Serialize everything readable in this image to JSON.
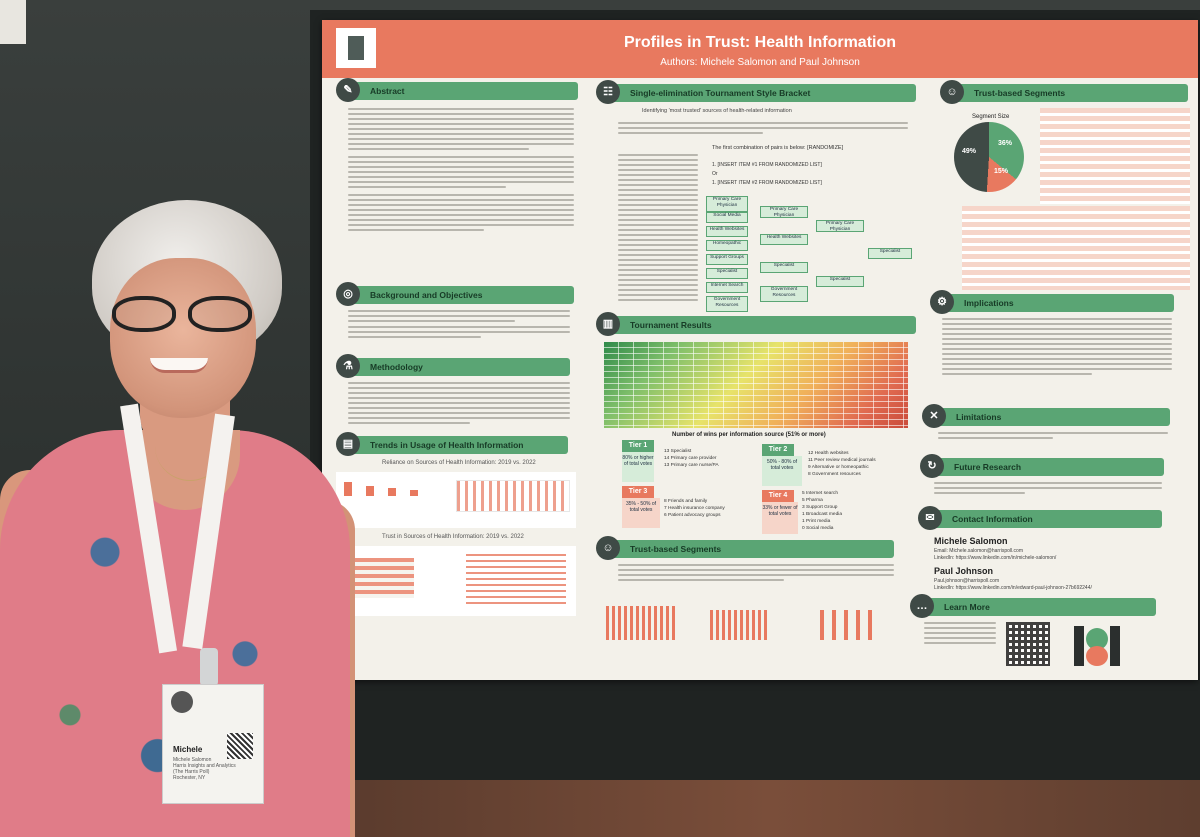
{
  "poster": {
    "title": "Profiles in Trust: Health Information",
    "authors": "Authors: Michele Salomon and Paul Johnson",
    "sections": {
      "abstract": "Abstract",
      "background": "Background and Objectives",
      "methodology": "Methodology",
      "trends": "Trends in Usage of Health Information",
      "bracket": "Single-elimination Tournament Style Bracket",
      "results": "Tournament Results",
      "segments_bottom": "Trust-based Segments",
      "segments_top": "Trust-based Segments",
      "implications": "Implications",
      "limitations": "Limitations",
      "future": "Future Research",
      "contact": "Contact Information",
      "learn": "Learn More"
    },
    "trends_chart1": "Reliance on Sources of Health Information: 2019 vs. 2022",
    "trends_chart2": "Trust in Sources of Health Information: 2019 vs. 2022",
    "bracket_subtitle": "Identifying 'most trusted' sources of health-related information",
    "bracket_combination": "The first combination of pairs is below: [RANDOMIZE]",
    "bracket_item1": "1.   [INSERT ITEM #1 FROM RANDOMIZED LIST]",
    "bracket_or": "Or",
    "bracket_item2": "1.   [INSERT ITEM #2 FROM RANDOMIZED LIST]",
    "segment_size": "Segment Size",
    "segment_pcts": [
      "49%",
      "36%",
      "15%"
    ],
    "results_caption": "Number of wins per information source (51% or more)",
    "tiers": [
      {
        "label": "Tier 1",
        "box": "80% or higher of total votes",
        "items": [
          "13 Specialist",
          "14 Primary care provider",
          "13 Primary care nurse/PA"
        ]
      },
      {
        "label": "Tier 2",
        "box": "50% - 80% of total votes",
        "items": [
          "12 Health websites",
          "11 Peer review medical journals",
          "9 Alternative or homeopathic",
          "8 Government resources"
        ]
      },
      {
        "label": "Tier 3",
        "box": "35% - 50% of total votes",
        "items": [
          "8 Friends and family",
          "7 Health insurance company",
          "6 Patient advocacy groups"
        ]
      },
      {
        "label": "Tier 4",
        "box": "33% or fewer of total votes",
        "items": [
          "5 Internet search",
          "5 Pharma",
          "3 Support Group",
          "1 Broadcast media",
          "1 Print media",
          "0 Social media"
        ]
      }
    ],
    "bracket_boxes": [
      "Primary Care Physician",
      "Social Media",
      "Health Websites",
      "Homeopathic",
      "Support Groups",
      "Specialist",
      "Internet Search",
      "Government Resources"
    ],
    "bracket_round2": [
      "Primary Care Physician",
      "Health Websites",
      "Specialist",
      "Government Resources"
    ],
    "bracket_round3": [
      "Primary Care Physician",
      "Specialist"
    ],
    "bracket_final": "Specialist",
    "contacts": [
      {
        "name": "Michele Salomon",
        "info": "Email: Michele.salomon@harrispoll.com\nLinkedIn: https://www.linkedin.com/in/michele-salomon/"
      },
      {
        "name": "Paul Johnson",
        "info": "Paul.johnson@harrispoll.com\nLinkedIn: https://www.linkedin.com/in/edward-paul-johnson-27b692244/"
      }
    ]
  },
  "badge": {
    "name": "Michele",
    "sub": "Michele Salomon\nHarris Insights and Analytics\n(The Harris Poll)\nRochester, NY"
  },
  "colors": {
    "header": "#e8795f",
    "section": "#5aa574",
    "dress": "#e07c88"
  }
}
